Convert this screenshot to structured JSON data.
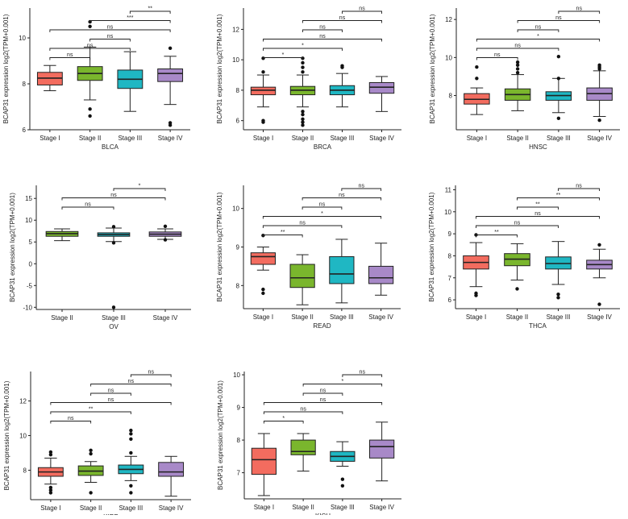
{
  "figure": {
    "colors": {
      "Stage I": "#f36c5f",
      "Stage II": "#7ab62d",
      "Stage III": "#1fb7c3",
      "Stage IV": "#a889c8",
      "axis": "#222222"
    }
  },
  "chart_data": [
    {
      "type": "box",
      "xlabel": "BLCA",
      "ylabel": "BCAP31 expression log2(TPM+0.001)",
      "ylim": [
        6,
        11.3
      ],
      "yticks": [
        6,
        8,
        10
      ],
      "ytick_labels": [
        "6",
        "8",
        "10"
      ],
      "categories": [
        "Stage I",
        "Stage II",
        "Stage III",
        "Stage IV"
      ],
      "boxes": [
        {
          "min": 7.7,
          "q1": 7.95,
          "median": 8.25,
          "q3": 8.5,
          "max": 8.8,
          "outliers": []
        },
        {
          "min": 7.3,
          "q1": 8.15,
          "median": 8.45,
          "q3": 8.75,
          "max": 9.6,
          "outliers": [
            6.6,
            6.9,
            10.7,
            10.5
          ]
        },
        {
          "min": 6.8,
          "q1": 7.8,
          "median": 8.2,
          "q3": 8.6,
          "max": 9.4,
          "outliers": []
        },
        {
          "min": 7.1,
          "q1": 8.1,
          "median": 8.45,
          "q3": 8.65,
          "max": 9.2,
          "outliers": [
            6.3,
            6.2,
            9.55
          ]
        }
      ],
      "comparisons": [
        {
          "from": 2,
          "to": 3,
          "label": "**"
        },
        {
          "from": 1,
          "to": 3,
          "label": "***"
        },
        {
          "from": 0,
          "to": 3,
          "label": "ns"
        },
        {
          "from": 1,
          "to": 2,
          "label": "ns"
        },
        {
          "from": 0,
          "to": 2,
          "label": "ns"
        },
        {
          "from": 0,
          "to": 1,
          "label": "ns"
        }
      ]
    },
    {
      "type": "box",
      "xlabel": "BRCA",
      "ylabel": "BCAP31 expression log2(TPM+0.001)",
      "ylim": [
        5.4,
        13.4
      ],
      "yticks": [
        6,
        8,
        10,
        12
      ],
      "ytick_labels": [
        "6",
        "8",
        "10",
        "12"
      ],
      "categories": [
        "Stage I",
        "Stage II",
        "Stage III",
        "Stage IV"
      ],
      "boxes": [
        {
          "min": 6.9,
          "q1": 7.7,
          "median": 8.0,
          "q3": 8.2,
          "max": 9.0,
          "outliers": [
            5.9,
            6.0,
            9.2,
            10.1
          ]
        },
        {
          "min": 6.9,
          "q1": 7.7,
          "median": 8.0,
          "q3": 8.25,
          "max": 9.0,
          "outliers": [
            5.7,
            5.9,
            6.1,
            6.4,
            6.6,
            9.2,
            9.5,
            9.8,
            10.1
          ]
        },
        {
          "min": 6.9,
          "q1": 7.7,
          "median": 8.0,
          "q3": 8.3,
          "max": 9.1,
          "outliers": [
            9.5,
            9.6
          ]
        },
        {
          "min": 6.6,
          "q1": 7.8,
          "median": 8.2,
          "q3": 8.5,
          "max": 8.9,
          "outliers": []
        }
      ],
      "comparisons": [
        {
          "from": 2,
          "to": 3,
          "label": "ns"
        },
        {
          "from": 1,
          "to": 3,
          "label": "ns"
        },
        {
          "from": 1,
          "to": 2,
          "label": "ns"
        },
        {
          "from": 0,
          "to": 3,
          "label": "ns"
        },
        {
          "from": 0,
          "to": 2,
          "label": "*"
        },
        {
          "from": 0,
          "to": 1,
          "label": "*"
        }
      ]
    },
    {
      "type": "box",
      "xlabel": "HNSC",
      "ylabel": "BCAP31 expression log2(TPM+0.001)",
      "ylim": [
        6.2,
        12.6
      ],
      "yticks": [
        8,
        10,
        12
      ],
      "ytick_labels": [
        "8",
        "10",
        "12"
      ],
      "categories": [
        "Stage I",
        "Stage II",
        "Stage III",
        "Stage IV"
      ],
      "boxes": [
        {
          "min": 7.0,
          "q1": 7.55,
          "median": 7.8,
          "q3": 8.1,
          "max": 8.4,
          "outliers": [
            8.9,
            9.5
          ]
        },
        {
          "min": 7.2,
          "q1": 7.75,
          "median": 8.05,
          "q3": 8.35,
          "max": 9.1,
          "outliers": [
            9.2,
            9.4,
            9.6,
            9.75
          ]
        },
        {
          "min": 7.1,
          "q1": 7.75,
          "median": 8.0,
          "q3": 8.2,
          "max": 8.9,
          "outliers": [
            6.8,
            8.9,
            10.05
          ]
        },
        {
          "min": 6.9,
          "q1": 7.75,
          "median": 8.1,
          "q3": 8.4,
          "max": 9.3,
          "outliers": [
            6.7,
            9.4,
            9.5,
            9.6
          ]
        }
      ],
      "comparisons": [
        {
          "from": 2,
          "to": 3,
          "label": "ns"
        },
        {
          "from": 1,
          "to": 3,
          "label": "ns"
        },
        {
          "from": 1,
          "to": 2,
          "label": "ns"
        },
        {
          "from": 0,
          "to": 3,
          "label": "*"
        },
        {
          "from": 0,
          "to": 2,
          "label": "ns"
        },
        {
          "from": 0,
          "to": 1,
          "label": "ns"
        }
      ]
    },
    {
      "type": "box",
      "xlabel": "OV",
      "ylabel": "BCAP31 expression log2(TPM+0.001)",
      "ylim": [
        -10.5,
        18
      ],
      "yticks": [
        -10,
        -5,
        0,
        5,
        10,
        15
      ],
      "ytick_labels": [
        "-10",
        "-5",
        "0",
        "5",
        "10",
        "15"
      ],
      "categories": [
        "Stage II",
        "Stage III",
        "Stage IV"
      ],
      "boxes": [
        {
          "min": 5.3,
          "q1": 6.3,
          "median": 6.9,
          "q3": 7.4,
          "max": 8.0,
          "outliers": []
        },
        {
          "min": 5.1,
          "q1": 6.3,
          "median": 6.7,
          "q3": 7.1,
          "max": 8.2,
          "outliers": [
            4.8,
            8.5,
            -10.0
          ]
        },
        {
          "min": 5.6,
          "q1": 6.3,
          "median": 6.8,
          "q3": 7.3,
          "max": 8.0,
          "outliers": [
            5.5,
            8.6
          ]
        }
      ],
      "comparisons": [
        {
          "from": 1,
          "to": 2,
          "label": "*"
        },
        {
          "from": 0,
          "to": 2,
          "label": "ns"
        },
        {
          "from": 0,
          "to": 1,
          "label": "ns"
        }
      ]
    },
    {
      "type": "box",
      "xlabel": "READ",
      "ylabel": "BCAP31 expression log2(TPM+0.001)",
      "ylim": [
        7.4,
        10.6
      ],
      "yticks": [
        8,
        9,
        10
      ],
      "ytick_labels": [
        "8",
        "9",
        "10"
      ],
      "categories": [
        "Stage I",
        "Stage II",
        "Stage III",
        "Stage IV"
      ],
      "boxes": [
        {
          "min": 8.4,
          "q1": 8.55,
          "median": 8.75,
          "q3": 8.85,
          "max": 9.0,
          "outliers": [
            9.3,
            7.9,
            7.8
          ]
        },
        {
          "min": 7.5,
          "q1": 7.95,
          "median": 8.2,
          "q3": 8.55,
          "max": 8.8,
          "outliers": []
        },
        {
          "min": 7.55,
          "q1": 8.05,
          "median": 8.3,
          "q3": 8.75,
          "max": 9.2,
          "outliers": []
        },
        {
          "min": 7.75,
          "q1": 8.05,
          "median": 8.2,
          "q3": 8.5,
          "max": 9.1,
          "outliers": []
        }
      ],
      "comparisons": [
        {
          "from": 2,
          "to": 3,
          "label": "ns"
        },
        {
          "from": 1,
          "to": 3,
          "label": "ns"
        },
        {
          "from": 1,
          "to": 2,
          "label": "ns"
        },
        {
          "from": 0,
          "to": 3,
          "label": "*"
        },
        {
          "from": 0,
          "to": 2,
          "label": "ns"
        },
        {
          "from": 0,
          "to": 1,
          "label": "**"
        }
      ]
    },
    {
      "type": "box",
      "xlabel": "THCA",
      "ylabel": "BCAP31 expression log2(TPM+0.001)",
      "ylim": [
        5.6,
        11.2
      ],
      "yticks": [
        6,
        7,
        8,
        9,
        10,
        11
      ],
      "ytick_labels": [
        "6",
        "7",
        "8",
        "9",
        "10",
        "11"
      ],
      "categories": [
        "Stage I",
        "Stage II",
        "Stage III",
        "Stage IV"
      ],
      "boxes": [
        {
          "min": 6.6,
          "q1": 7.4,
          "median": 7.7,
          "q3": 8.0,
          "max": 8.6,
          "outliers": [
            6.3,
            6.2,
            8.95
          ]
        },
        {
          "min": 6.9,
          "q1": 7.55,
          "median": 7.85,
          "q3": 8.1,
          "max": 8.55,
          "outliers": [
            6.5
          ]
        },
        {
          "min": 6.7,
          "q1": 7.4,
          "median": 7.65,
          "q3": 7.95,
          "max": 8.65,
          "outliers": [
            6.25,
            6.1
          ]
        },
        {
          "min": 7.0,
          "q1": 7.4,
          "median": 7.6,
          "q3": 7.8,
          "max": 8.3,
          "outliers": [
            8.5,
            5.8
          ]
        }
      ],
      "comparisons": [
        {
          "from": 2,
          "to": 3,
          "label": "ns"
        },
        {
          "from": 1,
          "to": 3,
          "label": "**"
        },
        {
          "from": 1,
          "to": 2,
          "label": "**"
        },
        {
          "from": 0,
          "to": 3,
          "label": "ns"
        },
        {
          "from": 0,
          "to": 2,
          "label": "ns"
        },
        {
          "from": 0,
          "to": 1,
          "label": "**"
        }
      ]
    },
    {
      "type": "box",
      "xlabel": "KIRP",
      "ylabel": "BCAP31 expression log2(TPM+0.001)",
      "ylim": [
        6.3,
        13.7
      ],
      "yticks": [
        8,
        10,
        12
      ],
      "ytick_labels": [
        "8",
        "10",
        "12"
      ],
      "categories": [
        "Stage I",
        "Stage II",
        "Stage III",
        "Stage IV"
      ],
      "boxes": [
        {
          "min": 7.2,
          "q1": 7.65,
          "median": 7.9,
          "q3": 8.15,
          "max": 8.7,
          "outliers": [
            6.7,
            6.85,
            7.0,
            8.9,
            9.05
          ]
        },
        {
          "min": 7.3,
          "q1": 7.7,
          "median": 7.95,
          "q3": 8.25,
          "max": 8.5,
          "outliers": [
            6.7,
            8.95,
            9.15
          ]
        },
        {
          "min": 7.4,
          "q1": 7.8,
          "median": 8.05,
          "q3": 8.3,
          "max": 8.8,
          "outliers": [
            6.7,
            7.1,
            9.0,
            9.8,
            10.1,
            10.3
          ]
        },
        {
          "min": 6.5,
          "q1": 7.65,
          "median": 7.9,
          "q3": 8.45,
          "max": 8.8,
          "outliers": []
        }
      ],
      "comparisons": [
        {
          "from": 2,
          "to": 3,
          "label": "ns"
        },
        {
          "from": 1,
          "to": 3,
          "label": "ns"
        },
        {
          "from": 1,
          "to": 2,
          "label": "ns"
        },
        {
          "from": 0,
          "to": 3,
          "label": "ns"
        },
        {
          "from": 0,
          "to": 2,
          "label": "**"
        },
        {
          "from": 0,
          "to": 1,
          "label": "ns"
        }
      ]
    },
    {
      "type": "box",
      "xlabel": "KICH",
      "ylabel": "BCAP31 expression log2(TPM+0.001)",
      "ylim": [
        6.2,
        10.1
      ],
      "yticks": [
        7,
        8,
        9,
        10
      ],
      "ytick_labels": [
        "7",
        "8",
        "9",
        "10"
      ],
      "categories": [
        "Stage I",
        "Stage II",
        "Stage III",
        "Stage IV"
      ],
      "boxes": [
        {
          "min": 6.3,
          "q1": 6.95,
          "median": 7.4,
          "q3": 7.75,
          "max": 8.2,
          "outliers": []
        },
        {
          "min": 7.05,
          "q1": 7.55,
          "median": 7.65,
          "q3": 8.0,
          "max": 8.2,
          "outliers": []
        },
        {
          "min": 7.2,
          "q1": 7.35,
          "median": 7.5,
          "q3": 7.65,
          "max": 7.95,
          "outliers": [
            6.8,
            6.6
          ]
        },
        {
          "min": 6.75,
          "q1": 7.45,
          "median": 7.8,
          "q3": 8.0,
          "max": 8.55,
          "outliers": []
        }
      ],
      "comparisons": [
        {
          "from": 2,
          "to": 3,
          "label": "ns"
        },
        {
          "from": 1,
          "to": 3,
          "label": "*"
        },
        {
          "from": 1,
          "to": 2,
          "label": "ns"
        },
        {
          "from": 0,
          "to": 3,
          "label": "ns"
        },
        {
          "from": 0,
          "to": 2,
          "label": "ns"
        },
        {
          "from": 0,
          "to": 1,
          "label": "*"
        }
      ]
    }
  ]
}
